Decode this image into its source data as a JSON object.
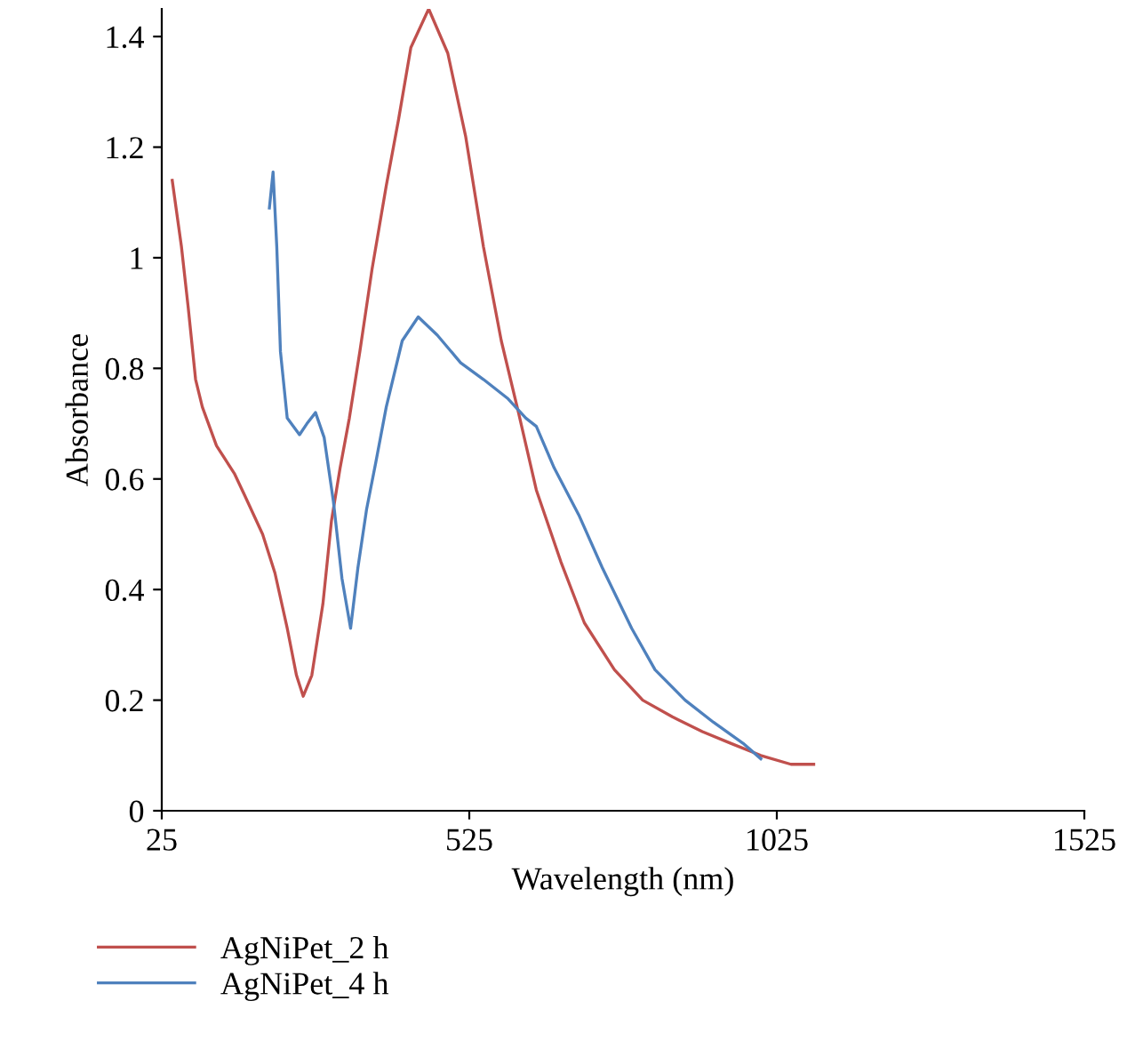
{
  "chart_data": {
    "type": "line",
    "xlabel": "Wavelength (nm)",
    "ylabel": "Absorbance",
    "xlim": [
      25,
      1525
    ],
    "xticks": [
      25,
      525,
      1025,
      1525
    ],
    "ylim": [
      0,
      1.45
    ],
    "yticks": [
      0,
      0.2,
      0.4,
      0.6,
      0.8,
      1,
      1.2,
      1.4
    ],
    "grid": false,
    "legend": "bottom left",
    "marker": "none",
    "line_style": "solid",
    "series": [
      {
        "name": "AgNiPet_2 h",
        "color": "#c0504d",
        "x": [
          42,
          57,
          68,
          80,
          91,
          114,
          143,
          160,
          189,
          209,
          229,
          244,
          255,
          269,
          287,
          301,
          315,
          330,
          347,
          367,
          390,
          410,
          430,
          459,
          490,
          519,
          548,
          577,
          605,
          634,
          674,
          712,
          761,
          807,
          855,
          904,
          950,
          999,
          1048,
          1085
        ],
        "values": [
          1.14,
          1.02,
          0.91,
          0.78,
          0.73,
          0.66,
          0.61,
          0.57,
          0.5,
          0.43,
          0.33,
          0.245,
          0.207,
          0.245,
          0.374,
          0.525,
          0.62,
          0.71,
          0.83,
          0.98,
          1.13,
          1.25,
          1.38,
          1.45,
          1.37,
          1.22,
          1.02,
          0.85,
          0.72,
          0.58,
          0.45,
          0.34,
          0.255,
          0.2,
          0.17,
          0.143,
          0.122,
          0.1,
          0.084,
          0.084
        ]
      },
      {
        "name": "AgNiPet_4 h",
        "color": "#4f81bd",
        "x": [
          200,
          206,
          212,
          218,
          229,
          249,
          261,
          275,
          289,
          304,
          318,
          332,
          344,
          358,
          373,
          390,
          416,
          442,
          473,
          511,
          548,
          588,
          617,
          634,
          663,
          703,
          741,
          789,
          827,
          876,
          922,
          970,
          999
        ],
        "values": [
          1.09,
          1.155,
          1.02,
          0.83,
          0.71,
          0.68,
          0.7,
          0.72,
          0.675,
          0.56,
          0.42,
          0.33,
          0.44,
          0.545,
          0.63,
          0.73,
          0.85,
          0.893,
          0.86,
          0.81,
          0.78,
          0.745,
          0.71,
          0.695,
          0.62,
          0.535,
          0.44,
          0.33,
          0.255,
          0.2,
          0.16,
          0.122,
          0.094
        ]
      }
    ]
  }
}
